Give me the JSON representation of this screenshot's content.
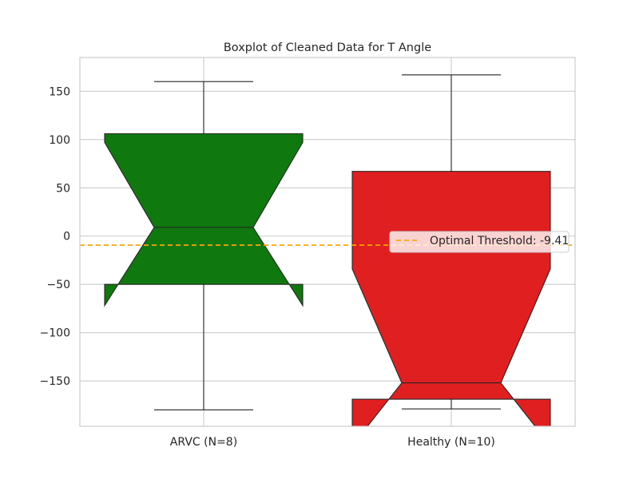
{
  "chart_data": {
    "type": "boxplot",
    "title": "Boxplot of Cleaned Data for T Angle",
    "xlabel": "",
    "ylabel": "",
    "ylim": [
      -197,
      185
    ],
    "yticks": [
      150,
      100,
      50,
      0,
      -50,
      -100,
      -150
    ],
    "ytick_labels": [
      "150",
      "100",
      "50",
      "0",
      "−50",
      "−100",
      "−150"
    ],
    "notched": true,
    "grid": true,
    "categories": [
      "ARVC (N=8)",
      "Healthy (N=10)"
    ],
    "boxes": [
      {
        "label": "ARVC (N=8)",
        "color": "#0f780f",
        "whisker_low": -180,
        "q1": -50,
        "notch_low": -72,
        "median": 9,
        "notch_high": 97,
        "q3": 106,
        "whisker_high": 160
      },
      {
        "label": "Healthy (N=10)",
        "color": "#e02020",
        "whisker_low": -179,
        "q1": -169,
        "notch_low": -217,
        "median": -152,
        "notch_high": -34,
        "q3": 67,
        "whisker_high": 167
      }
    ],
    "threshold": {
      "value": -9.41,
      "label": "Optimal Threshold: -9.41",
      "color": "#ffa500",
      "style": "dashed"
    },
    "legend_placement": "center-right"
  }
}
